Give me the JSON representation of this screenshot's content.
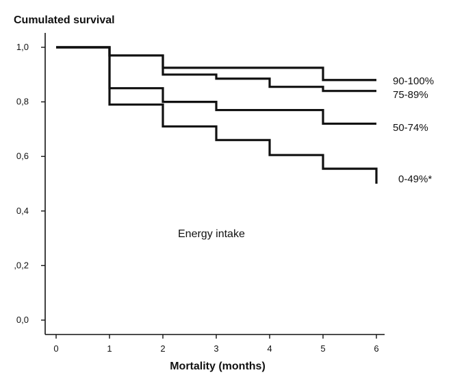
{
  "chart_data": {
    "type": "line",
    "step": true,
    "ylabel": "Cumulated survival",
    "xlabel": "Mortality (months)",
    "xlim": [
      0,
      6
    ],
    "ylim": [
      0,
      1
    ],
    "xticks": [
      0,
      1,
      2,
      3,
      4,
      5,
      6
    ],
    "xtick_labels": [
      "0",
      "1",
      "2",
      "3",
      "4",
      "5",
      "6"
    ],
    "yticks": [
      0,
      0.2,
      0.4,
      0.6,
      0.8,
      1.0
    ],
    "ytick_labels": [
      "0,0",
      ",0,2",
      "0,4",
      "0,6",
      "0,8",
      "1,0"
    ],
    "grid": false,
    "annotation": "Energy intake",
    "series": [
      {
        "name": "90-100%",
        "x": [
          0,
          1,
          2,
          5,
          6
        ],
        "y": [
          1.0,
          0.97,
          0.925,
          0.88,
          0.88
        ]
      },
      {
        "name": "75-89%",
        "x": [
          0,
          1,
          2,
          3,
          4,
          5,
          6
        ],
        "y": [
          1.0,
          0.97,
          0.9,
          0.885,
          0.855,
          0.84,
          0.84
        ]
      },
      {
        "name": "50-74%",
        "x": [
          0,
          1,
          2,
          3,
          5,
          6
        ],
        "y": [
          1.0,
          0.85,
          0.8,
          0.77,
          0.72,
          0.72
        ]
      },
      {
        "name": "0-49%*",
        "x": [
          0,
          1,
          2,
          3,
          4,
          5,
          6
        ],
        "y": [
          1.0,
          0.79,
          0.71,
          0.66,
          0.605,
          0.555,
          0.5
        ]
      }
    ]
  }
}
